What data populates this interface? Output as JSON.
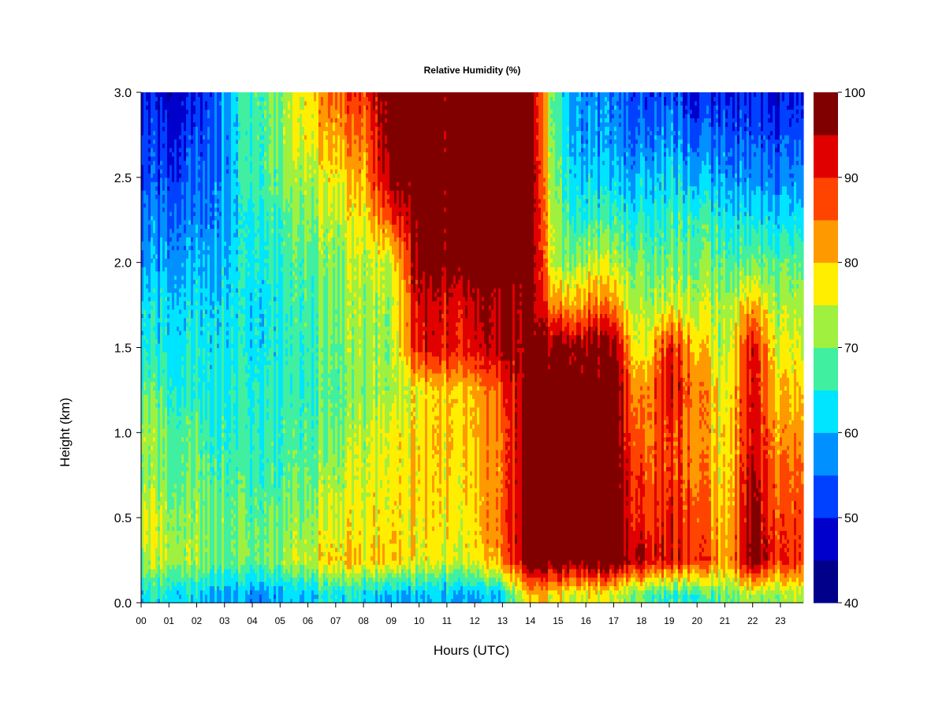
{
  "chart_data": {
    "type": "heatmap",
    "title": "Relative Humidity (%)",
    "xlabel": "Hours (UTC)",
    "ylabel": "Height (km)",
    "x_ticks": [
      "00",
      "01",
      "02",
      "03",
      "04",
      "05",
      "06",
      "07",
      "08",
      "09",
      "10",
      "11",
      "12",
      "13",
      "14",
      "15",
      "16",
      "17",
      "18",
      "19",
      "20",
      "21",
      "22",
      "23"
    ],
    "y_ticks": [
      "0.0",
      "0.5",
      "1.0",
      "1.5",
      "2.0",
      "2.5",
      "3.0"
    ],
    "xlim": [
      0,
      24
    ],
    "ylim": [
      0,
      3.0
    ],
    "colorbar": {
      "levels": [
        40,
        45,
        50,
        55,
        60,
        65,
        70,
        75,
        80,
        85,
        90,
        95,
        100
      ],
      "tick_labels": [
        "40",
        "50",
        "60",
        "70",
        "80",
        "90",
        "100"
      ],
      "colors": [
        "#00008b",
        "#0000cd",
        "#0040ff",
        "#0090ff",
        "#00e5ff",
        "#40f0a0",
        "#a0f040",
        "#ffee00",
        "#ff9900",
        "#ff4400",
        "#e00000",
        "#800000"
      ]
    },
    "hours": [
      0,
      1,
      2,
      3,
      4,
      5,
      6,
      7,
      8,
      9,
      10,
      11,
      12,
      13,
      14,
      15,
      16,
      17,
      18,
      19,
      20,
      21,
      22,
      23
    ],
    "heights_km": [
      0.05,
      0.25,
      0.5,
      0.75,
      1.0,
      1.25,
      1.5,
      1.75,
      2.0,
      2.25,
      2.5,
      2.75,
      3.0
    ],
    "values": [
      [
        62,
        72,
        76,
        71,
        72,
        68,
        63,
        62,
        57,
        55,
        51,
        52,
        48
      ],
      [
        63,
        74,
        72,
        69,
        69,
        66,
        63,
        62,
        58,
        56,
        52,
        49,
        47
      ],
      [
        62,
        72,
        71,
        69,
        68,
        64,
        64,
        62,
        59,
        56,
        54,
        52,
        48
      ],
      [
        60,
        70,
        70,
        68,
        66,
        65,
        64,
        63,
        61,
        59,
        58,
        58,
        59
      ],
      [
        57,
        69,
        68,
        67,
        65,
        65,
        63,
        62,
        64,
        64,
        67,
        67,
        67
      ],
      [
        59,
        71,
        69,
        67,
        66,
        65,
        64,
        64,
        65,
        67,
        69,
        70,
        70
      ],
      [
        62,
        75,
        72,
        70,
        68,
        67,
        67,
        68,
        69,
        72,
        74,
        78,
        79
      ],
      [
        64,
        80,
        76,
        74,
        70,
        69,
        70,
        71,
        72,
        74,
        78,
        83,
        86
      ],
      [
        62,
        78,
        75,
        74,
        73,
        70,
        71,
        72,
        73,
        76,
        80,
        84,
        88
      ],
      [
        60,
        80,
        78,
        77,
        77,
        73,
        72,
        72,
        75,
        88,
        98,
        100,
        100
      ],
      [
        60,
        76,
        78,
        79,
        78,
        76,
        92,
        94,
        97,
        100,
        100,
        100,
        100
      ],
      [
        60,
        76,
        78,
        79,
        80,
        80,
        91,
        92,
        99,
        100,
        100,
        100,
        100
      ],
      [
        59,
        76,
        78,
        79,
        80,
        80,
        92,
        94,
        100,
        100,
        100,
        100,
        100
      ],
      [
        61,
        84,
        86,
        85,
        85,
        87,
        96,
        97,
        100,
        100,
        100,
        100,
        100
      ],
      [
        80,
        100,
        100,
        100,
        100,
        98,
        96,
        96,
        100,
        100,
        100,
        100,
        100
      ],
      [
        76,
        100,
        100,
        100,
        100,
        100,
        98,
        82,
        70,
        69,
        67,
        65,
        64
      ],
      [
        76,
        100,
        100,
        100,
        100,
        100,
        98,
        84,
        74,
        66,
        61,
        58,
        57
      ],
      [
        74,
        100,
        100,
        100,
        100,
        100,
        97,
        83,
        73,
        66,
        60,
        57,
        55
      ],
      [
        70,
        95,
        89,
        88,
        84,
        82,
        74,
        72,
        70,
        65,
        60,
        55,
        52
      ],
      [
        66,
        93,
        92,
        90,
        90,
        94,
        92,
        76,
        70,
        67,
        63,
        58,
        54
      ],
      [
        66,
        91,
        88,
        85,
        84,
        85,
        80,
        74,
        70,
        67,
        60,
        54,
        49
      ],
      [
        69,
        81,
        78,
        77,
        77,
        75,
        72,
        72,
        68,
        64,
        58,
        54,
        49
      ],
      [
        72,
        97,
        96,
        94,
        92,
        92,
        92,
        80,
        68,
        62,
        56,
        52,
        48
      ],
      [
        72,
        89,
        87,
        85,
        82,
        79,
        75,
        72,
        68,
        62,
        56,
        52,
        48
      ]
    ]
  }
}
